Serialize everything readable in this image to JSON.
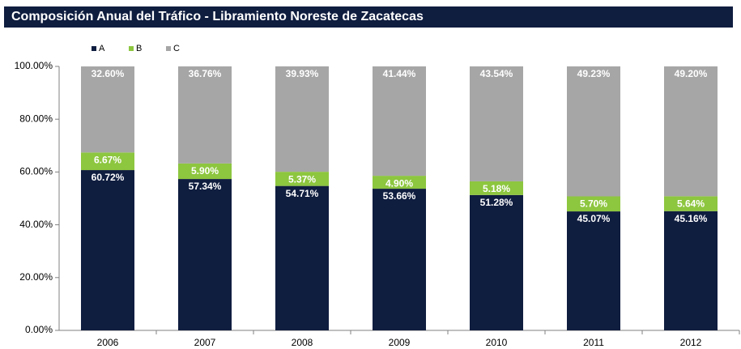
{
  "chart_data": {
    "type": "stacked_bar",
    "title": "Composición Anual del Tráfico - Libramiento Noreste de Zacatecas",
    "categories": [
      "2006",
      "2007",
      "2008",
      "2009",
      "2010",
      "2011",
      "2012"
    ],
    "series": [
      {
        "name": "A",
        "color": "#0f1d3f",
        "values": [
          60.72,
          57.34,
          54.71,
          53.66,
          51.28,
          45.07,
          45.16
        ],
        "value_labels": [
          "60.72%",
          "57.34%",
          "54.71%",
          "53.66%",
          "51.28%",
          "45.07%",
          "45.16%"
        ]
      },
      {
        "name": "B",
        "color": "#8dc63f",
        "values": [
          6.67,
          5.9,
          5.37,
          4.9,
          5.18,
          5.7,
          5.64
        ],
        "value_labels": [
          "6.67%",
          "5.90%",
          "5.37%",
          "4.90%",
          "5.18%",
          "5.70%",
          "5.64%"
        ]
      },
      {
        "name": "C",
        "color": "#a6a6a6",
        "values": [
          32.6,
          36.76,
          39.93,
          41.44,
          43.54,
          49.23,
          49.2
        ],
        "value_labels": [
          "32.60%",
          "36.76%",
          "39.93%",
          "41.44%",
          "43.54%",
          "49.23%",
          "49.20%"
        ]
      }
    ],
    "ylim": [
      0,
      100
    ],
    "yticks": [
      {
        "value": 0,
        "label": "0.00%"
      },
      {
        "value": 20,
        "label": "20.00%"
      },
      {
        "value": 40,
        "label": "40.00%"
      },
      {
        "value": 60,
        "label": "60.00%"
      },
      {
        "value": 80,
        "label": "80.00%"
      },
      {
        "value": 100,
        "label": "100.00%"
      }
    ],
    "legend": "top-left"
  }
}
